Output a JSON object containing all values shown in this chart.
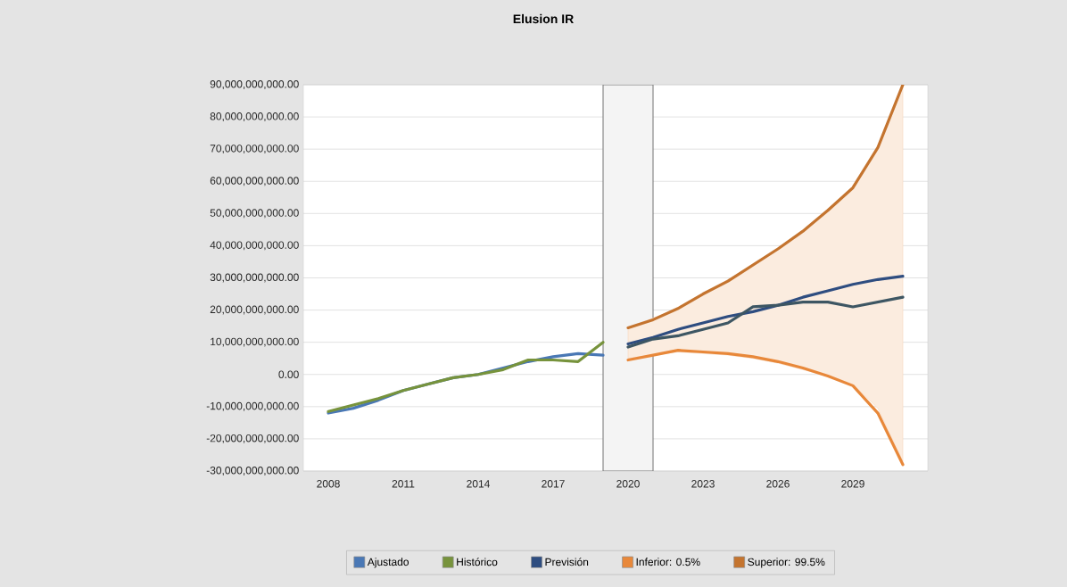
{
  "chart_data": {
    "type": "line",
    "title": "Elusion IR",
    "xlim": [
      2007,
      2032
    ],
    "xticks": [
      2008,
      2011,
      2014,
      2017,
      2020,
      2023,
      2026,
      2029
    ],
    "ylim": [
      -30000000000,
      90000000000
    ],
    "yticks": [
      {
        "value": -30000000000,
        "label": "-30,000,000,000.00"
      },
      {
        "value": -20000000000,
        "label": "-20,000,000,000.00"
      },
      {
        "value": -10000000000,
        "label": "-10,000,000,000.00"
      },
      {
        "value": 0,
        "label": "0.00"
      },
      {
        "value": 10000000000,
        "label": "10,000,000,000.00"
      },
      {
        "value": 20000000000,
        "label": "20,000,000,000.00"
      },
      {
        "value": 30000000000,
        "label": "30,000,000,000.00"
      },
      {
        "value": 40000000000,
        "label": "40,000,000,000.00"
      },
      {
        "value": 50000000000,
        "label": "50,000,000,000.00"
      },
      {
        "value": 60000000000,
        "label": "60,000,000,000.00"
      },
      {
        "value": 70000000000,
        "label": "70,000,000,000.00"
      },
      {
        "value": 80000000000,
        "label": "80,000,000,000.00"
      },
      {
        "value": 90000000000,
        "label": "90,000,000,000.00"
      }
    ],
    "grid": "y",
    "legend": "bottom",
    "bands": [
      {
        "axis": "x",
        "from": 2019,
        "to": 2021,
        "color": "#f4f4f4"
      }
    ],
    "series": [
      {
        "name": "Ajustado",
        "color": "#4a78b5",
        "x": [
          2008,
          2009,
          2010,
          2011,
          2012,
          2013,
          2014,
          2015,
          2016,
          2017,
          2018,
          2019
        ],
        "values": [
          -12000000000,
          -10500000000,
          -8000000000,
          -5000000000,
          -3000000000,
          -1000000000,
          0,
          2000000000,
          4000000000,
          5500000000,
          6500000000,
          6000000000
        ]
      },
      {
        "name": "Histórico",
        "color": "#77933c",
        "x": [
          2008,
          2009,
          2010,
          2011,
          2012,
          2013,
          2014,
          2015,
          2016,
          2017,
          2018,
          2019
        ],
        "values": [
          -11500000000,
          -9500000000,
          -7500000000,
          -5000000000,
          -3000000000,
          -1000000000,
          0,
          1500000000,
          4500000000,
          4500000000,
          4000000000,
          10000000000
        ]
      },
      {
        "name": "Previsión",
        "color": "#2e4d80",
        "x": [
          2020,
          2021,
          2022,
          2023,
          2024,
          2025,
          2026,
          2027,
          2028,
          2029,
          2030,
          2031
        ],
        "values": [
          9500000000,
          11500000000,
          14000000000,
          16000000000,
          18000000000,
          19500000000,
          21500000000,
          24000000000,
          26000000000,
          28000000000,
          29500000000,
          30500000000
        ]
      },
      {
        "color": "#3d5663",
        "x": [
          2020,
          2021,
          2022,
          2023,
          2024,
          2025,
          2026,
          2027,
          2028,
          2029,
          2030,
          2031
        ],
        "values": [
          8500000000,
          11000000000,
          12000000000,
          14000000000,
          16000000000,
          21000000000,
          21500000000,
          22500000000,
          22500000000,
          21000000000,
          22500000000,
          24000000000
        ]
      },
      {
        "name": "Inferior: 0.5%",
        "color": "#e8883a",
        "x": [
          2020,
          2021,
          2022,
          2023,
          2024,
          2025,
          2026,
          2027,
          2028,
          2029,
          2030,
          2031
        ],
        "values": [
          4500000000,
          6000000000,
          7500000000,
          7000000000,
          6500000000,
          5500000000,
          4000000000,
          2000000000,
          -500000000,
          -3500000000,
          -12000000000,
          -28000000000
        ],
        "lower": [
          5000000000,
          6000000000,
          7000000000,
          6500000000,
          6000000000,
          5000000000,
          3500000000,
          1500000000,
          -500000000,
          -3000000000,
          -10500000000,
          -27000000000
        ],
        "upper": [
          14500000000,
          17500000000,
          20500000000,
          25000000000,
          29500000000,
          34000000000,
          39000000000,
          44500000000,
          51000000000,
          58000000000,
          70000000000,
          89500000000
        ]
      },
      {
        "name": "Superior: 99.5%",
        "color": "#c4742f",
        "x": [
          2020,
          2021,
          2022,
          2023,
          2024,
          2025,
          2026,
          2027,
          2028,
          2029,
          2030,
          2031
        ],
        "values": [
          14500000000,
          17000000000,
          20500000000,
          25000000000,
          29000000000,
          34000000000,
          39000000000,
          44500000000,
          51000000000,
          58000000000,
          70500000000,
          90000000000
        ]
      }
    ]
  }
}
